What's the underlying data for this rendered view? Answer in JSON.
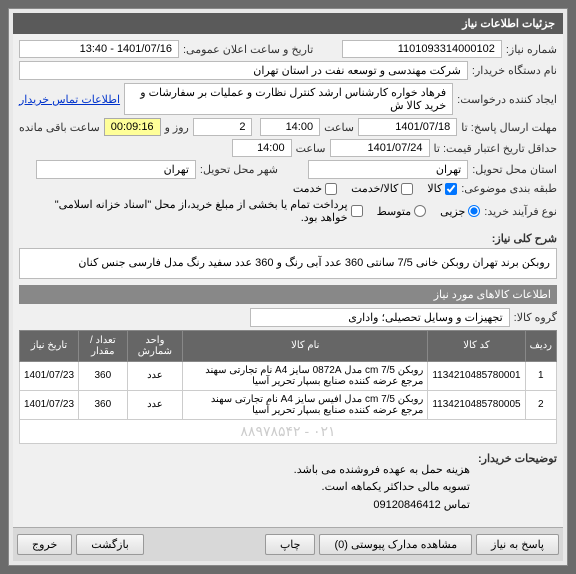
{
  "panel_title": "جزئیات اطلاعات نیاز",
  "form": {
    "need_no_lbl": "شماره نیاز:",
    "need_no": "1101093314000102",
    "announce_lbl": "تاریخ و ساعت اعلان عمومی:",
    "announce": "1401/07/16 - 13:40",
    "buyer_lbl": "نام دستگاه خریدار:",
    "buyer": "شرکت مهندسی و توسعه نفت در استان تهران",
    "creator_lbl": "ایجاد کننده درخواست:",
    "creator": "فرهاد خواره کارشناس ارشد کنترل نظارت و عملیات بر سفارشات و خرید کالا ش",
    "contact_link": "اطلاعات تماس خریدار",
    "deadline_lbl": "مهلت ارسال پاسخ: تا",
    "deadline_date": "1401/07/18",
    "time_lbl": "ساعت",
    "deadline_time": "14:00",
    "days": "2",
    "days_lbl": "روز و",
    "timer": "00:09:16",
    "remain_lbl": "ساعت باقی مانده",
    "validity_lbl": "حداقل تاریخ اعتبار قیمت: تا",
    "validity_date": "1401/07/24",
    "validity_time": "14:00",
    "delivery_state_lbl": "استان محل تحویل:",
    "delivery_state": "تهران",
    "delivery_city_lbl": "شهر محل تحویل:",
    "delivery_city": "تهران",
    "subject_class_lbl": "طبقه بندی موضوعی:",
    "cb_goods": "کالا",
    "cb_service": "کالا/خدمت",
    "cb_service2": "خدمت",
    "purchase_type_lbl": "نوع فرآیند خرید:",
    "rb_partial": "جزیی",
    "rb_medium": "متوسط",
    "partial_note": "پرداخت تمام یا بخشی از مبلغ خرید،از محل \"اسناد خزانه اسلامی\" خواهد بود."
  },
  "summary_lbl": "شرح کلی نیاز:",
  "summary": "روبکن برند تهران روبکن خانی 7/5 سانتی 360 عدد آبی رنگ و 360 عدد سفید رنگ مدل فارسی  جنس کنان",
  "items_hdr": "اطلاعات کالاهای مورد نیاز",
  "group_lbl": "گروه کالا:",
  "group": "تجهیزات و وسایل تحصیلی؛ واداری",
  "table": {
    "cols": [
      "ردیف",
      "کد کالا",
      "نام کالا",
      "واحد شمارش",
      "تعداد / مقدار",
      "تاریخ نیاز"
    ],
    "rows": [
      [
        "1",
        "1134210485780001",
        "روبکن 7/5 cm مدل 0872A سایز A4 نام تجارتی سهند مرجع عرضه کننده صنایع بسپار تحریر آسیا",
        "عدد",
        "360",
        "1401/07/23"
      ],
      [
        "2",
        "1134210485780005",
        "روبکن 7/5 cm مدل افیس سایز A4 نام تجارتی سهند مرجع عرضه کننده صنایع بسپار تحریر آسیا",
        "عدد",
        "360",
        "1401/07/23"
      ]
    ],
    "wm": "۰۲۱ - ۸۸۹۷۸۵۴۲"
  },
  "notes_lbl": "توضیحات خریدار:",
  "notes": [
    "هزینه حمل به عهده فروشنده می باشد.",
    "تسویه مالی حداکثر یکماهه است.",
    "تماس 09120846412"
  ],
  "buttons": {
    "reply": "پاسخ به نیاز",
    "attachments": "مشاهده مدارک پیوستی  (0)",
    "print": "چاپ",
    "back": "بازگشت",
    "exit": "خروج"
  }
}
